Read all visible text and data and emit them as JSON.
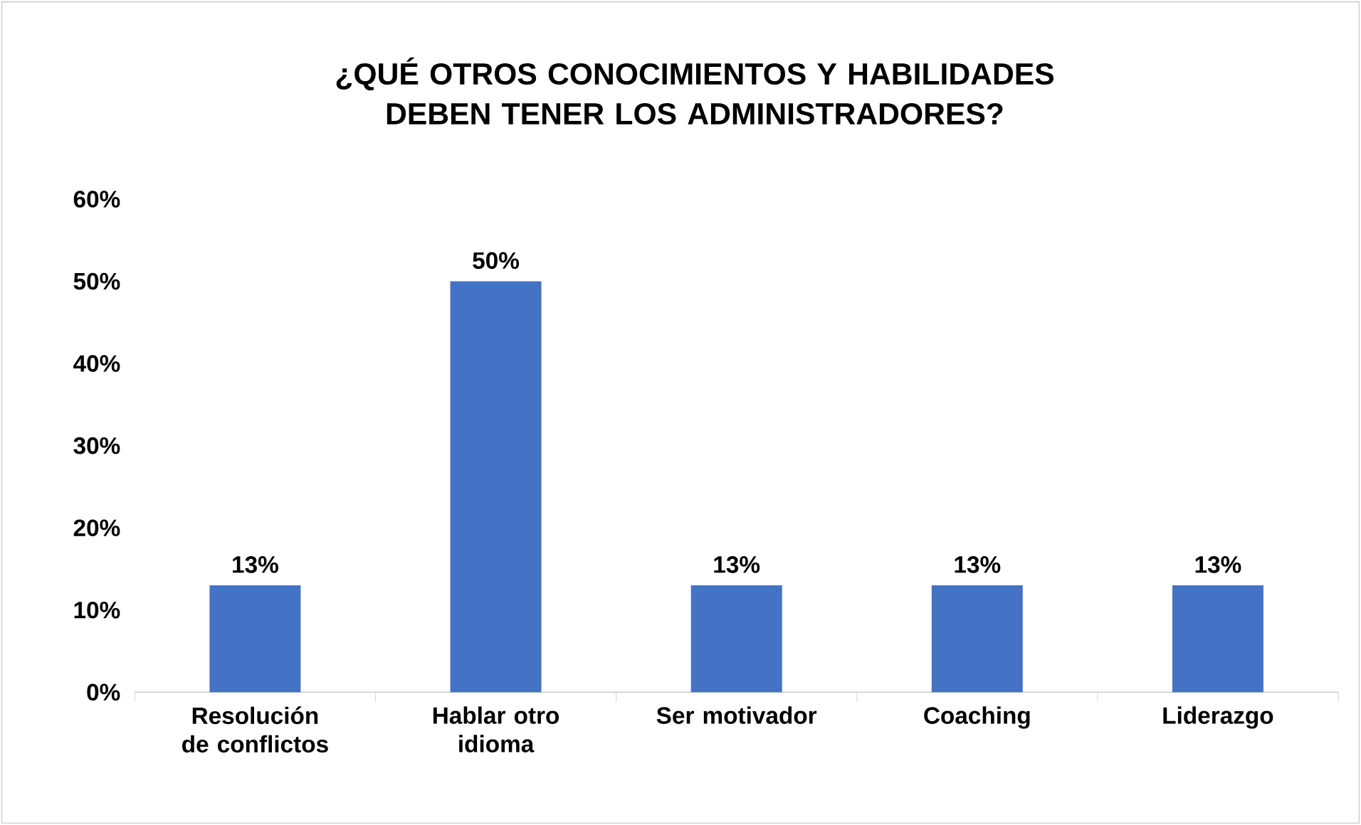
{
  "chart_data": {
    "type": "bar",
    "title": "¿QUÉ OTROS CONOCIMIENTOS Y HABILIDADES DEBEN TENER LOS ADMINISTRADORES?",
    "categories": [
      "Resolución de conflictos",
      "Hablar otro idioma",
      "Ser motivador",
      "Coaching",
      "Liderazgo"
    ],
    "values": [
      13,
      50,
      13,
      13,
      13
    ],
    "value_labels": [
      "13%",
      "50%",
      "13%",
      "13%",
      "13%"
    ],
    "color": "#4472c4",
    "ylim": [
      0,
      60
    ],
    "yticks": [
      {
        "value": 0,
        "label": "0%"
      },
      {
        "value": 10,
        "label": "10%"
      },
      {
        "value": 20,
        "label": "20%"
      },
      {
        "value": 30,
        "label": "30%"
      },
      {
        "value": 40,
        "label": "40%"
      },
      {
        "value": 50,
        "label": "50%"
      },
      {
        "value": 60,
        "label": "60%"
      }
    ]
  }
}
